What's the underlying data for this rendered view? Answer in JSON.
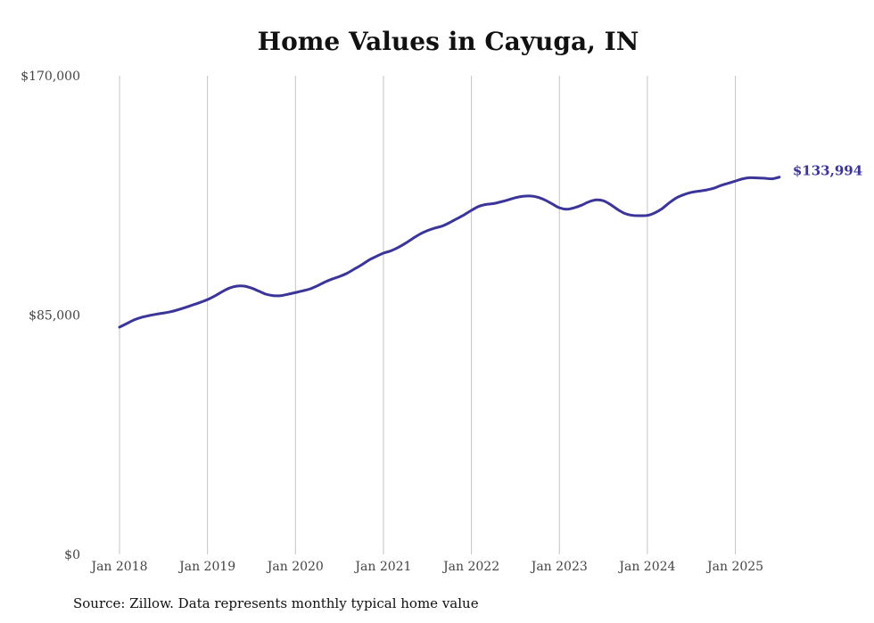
{
  "chart_data": {
    "type": "line",
    "title": "Home Values in Cayuga, IN",
    "source": "Source: Zillow. Data represents monthly typical home value",
    "xlabel": "",
    "ylabel": "",
    "ylim": [
      0,
      170000
    ],
    "yticks": [
      0,
      85000,
      170000
    ],
    "ytick_labels": [
      "$0",
      "$85,000",
      "$170,000"
    ],
    "xtick_labels": [
      "Jan 2018",
      "Jan 2019",
      "Jan 2020",
      "Jan 2021",
      "Jan 2022",
      "Jan 2023",
      "Jan 2024",
      "Jan 2025"
    ],
    "x_start": "Jan 2018",
    "x_end": "Jul 2025",
    "grid": "vertical",
    "series_color": "#3b3599",
    "end_label": "$133,994",
    "series": [
      {
        "name": "Typical home value",
        "values": [
          80700,
          82000,
          83300,
          84200,
          84800,
          85300,
          85700,
          86200,
          86900,
          87700,
          88600,
          89500,
          90500,
          91800,
          93300,
          94600,
          95300,
          95300,
          94600,
          93500,
          92400,
          91900,
          91900,
          92400,
          93000,
          93600,
          94300,
          95400,
          96700,
          97800,
          98700,
          99800,
          101300,
          102800,
          104500,
          105800,
          107000,
          107800,
          109000,
          110500,
          112200,
          113800,
          115000,
          115900,
          116600,
          117800,
          119200,
          120600,
          122200,
          123600,
          124300,
          124600,
          125200,
          125900,
          126700,
          127200,
          127300,
          126900,
          125900,
          124500,
          123100,
          122600,
          123100,
          124000,
          125200,
          125900,
          125600,
          124200,
          122400,
          121000,
          120400,
          120300,
          120400,
          121300,
          122800,
          124900,
          126700,
          127800,
          128600,
          129000,
          129400,
          130000,
          131000,
          131800,
          132600,
          133400,
          133800,
          133700,
          133600,
          133400,
          133994
        ]
      }
    ]
  }
}
